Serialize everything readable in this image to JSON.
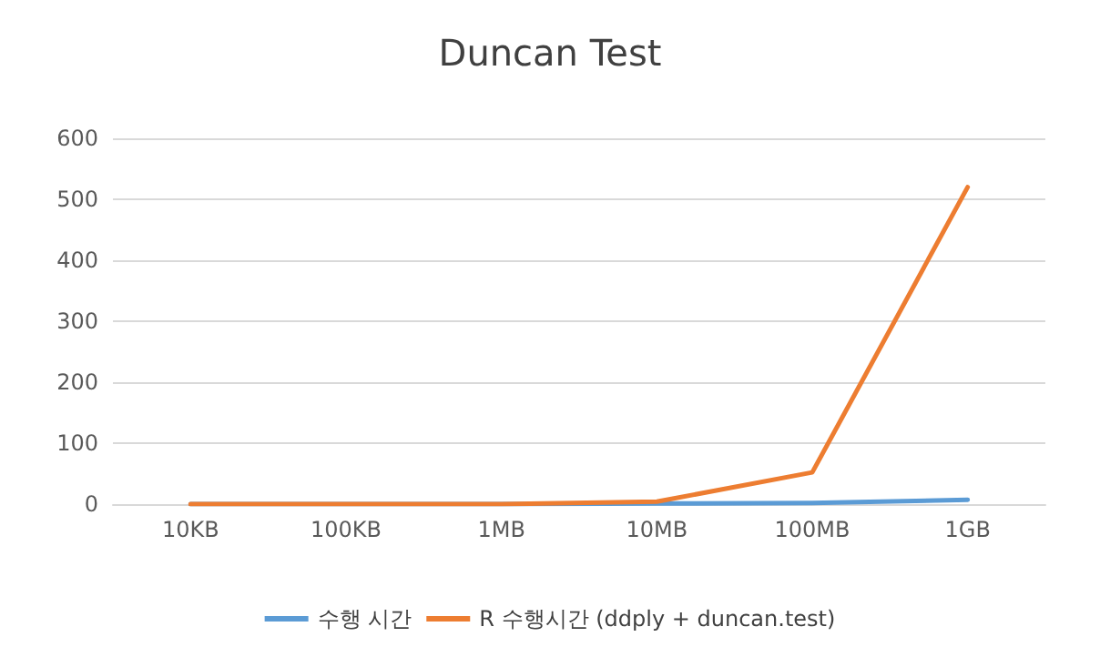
{
  "chart_data": {
    "type": "line",
    "title": "Duncan Test",
    "categories": [
      "10KB",
      "100KB",
      "1MB",
      "10MB",
      "100MB",
      "1GB"
    ],
    "series": [
      {
        "name": "수행 시간",
        "color": "#5b9bd5",
        "values": [
          0,
          0,
          0,
          1,
          2,
          7
        ]
      },
      {
        "name": "R 수행시간 (ddply + duncan.test)",
        "color": "#ed7d31",
        "values": [
          0,
          0,
          0,
          4,
          52,
          520
        ]
      }
    ],
    "ylim": [
      0,
      600
    ],
    "yticks": [
      0,
      100,
      200,
      300,
      400,
      500,
      600
    ],
    "grid": "y",
    "legend": "bottom",
    "marker": "none",
    "line_style": "solid"
  }
}
